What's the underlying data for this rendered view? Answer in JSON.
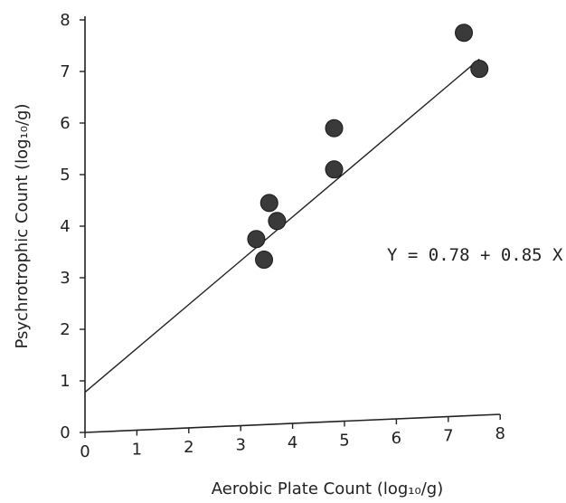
{
  "chart_data": {
    "type": "scatter",
    "title": "",
    "xlabel": "Aerobic Plate Count (log₁₀/g)",
    "ylabel": "Psychrotrophic Count (log₁₀/g)",
    "xlim": [
      0,
      8
    ],
    "ylim": [
      0,
      8
    ],
    "x_ticks": [
      "0",
      "1",
      "2",
      "3",
      "4",
      "5",
      "6",
      "7",
      "8"
    ],
    "y_ticks": [
      "0",
      "1",
      "2",
      "3",
      "4",
      "5",
      "6",
      "7",
      "8"
    ],
    "grid": false,
    "series": [
      {
        "points": [
          {
            "x": 3.3,
            "y": 3.75
          },
          {
            "x": 3.45,
            "y": 3.35
          },
          {
            "x": 3.55,
            "y": 4.45
          },
          {
            "x": 3.7,
            "y": 4.1
          },
          {
            "x": 4.8,
            "y": 5.9
          },
          {
            "x": 4.8,
            "y": 5.1
          },
          {
            "x": 7.3,
            "y": 7.75
          },
          {
            "x": 7.6,
            "y": 7.05
          }
        ]
      }
    ],
    "regression": {
      "intercept": 0.78,
      "slope": 0.85,
      "x_range": [
        0,
        7.6
      ],
      "label": "Y = 0.78 + 0.85 X"
    },
    "colors": {
      "point": "#3a3a3a",
      "line": "#222222",
      "axis": "#222222"
    }
  }
}
